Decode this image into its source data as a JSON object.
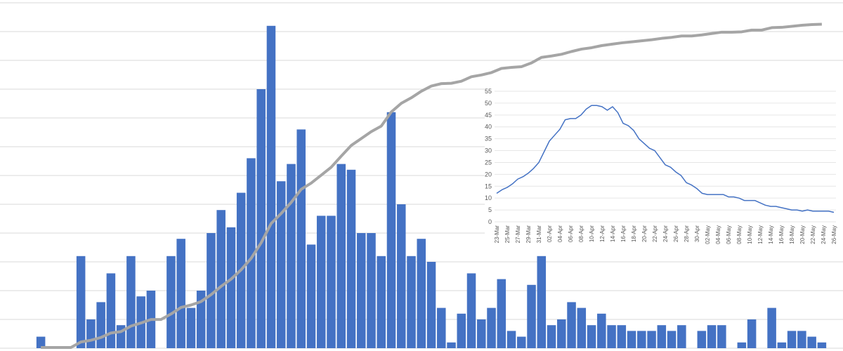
{
  "chart_data": [
    {
      "type": "bar",
      "categories": [
        null,
        null,
        null,
        null,
        null,
        null,
        null,
        null,
        null,
        null,
        null,
        null,
        null,
        null,
        null,
        null,
        null,
        null,
        null,
        null,
        null,
        null,
        null,
        null,
        null,
        null,
        null,
        null,
        null,
        null,
        null,
        null,
        null,
        null,
        null,
        null,
        null,
        null,
        null,
        null,
        null,
        null,
        null,
        null,
        null,
        null,
        null,
        null,
        null,
        null,
        null,
        null,
        null,
        null,
        null,
        null,
        null,
        null,
        null,
        null,
        null,
        null,
        null,
        null,
        null,
        null,
        null,
        null,
        null,
        null,
        null,
        null,
        null,
        null,
        null,
        null,
        null,
        null,
        null
      ],
      "series": [
        {
          "color": "#4472c4",
          "values": [
            2,
            0,
            0,
            0,
            16,
            5,
            8,
            13,
            4,
            16,
            9,
            10,
            0,
            16,
            19,
            7,
            10,
            20,
            24,
            21,
            27,
            33,
            45,
            56,
            29,
            32,
            38,
            18,
            23,
            23,
            32,
            31,
            20,
            20,
            16,
            41,
            25,
            16,
            19,
            15,
            7,
            1,
            6,
            13,
            5,
            7,
            12,
            3,
            2,
            11,
            16,
            4,
            5,
            8,
            7,
            4,
            6,
            4,
            4,
            3,
            3,
            3,
            4,
            3,
            4,
            0,
            3,
            4,
            4,
            0,
            1,
            5,
            0,
            7,
            1,
            3,
            3,
            2,
            1
          ]
        },
        {
          "type": "line",
          "axis": "y2",
          "color": "#a5a5a5",
          "values": [
            2,
            2,
            2,
            2,
            18,
            23,
            31,
            44,
            48,
            64,
            73,
            83,
            83,
            99,
            118,
            125,
            135,
            155,
            179,
            200,
            227,
            260,
            305,
            361,
            390,
            422,
            460,
            478,
            501,
            524,
            556,
            587,
            607,
            627,
            643,
            684,
            709,
            725,
            744,
            759,
            766,
            767,
            773,
            786,
            791,
            798,
            810,
            813,
            815,
            826,
            842,
            846,
            851,
            859,
            866,
            870,
            876,
            880,
            884,
            887,
            890,
            893,
            897,
            900,
            904,
            904,
            907,
            911,
            915,
            915,
            916,
            921,
            921,
            928,
            929,
            932,
            935,
            937,
            938
          ]
        }
      ],
      "ylim": [
        0,
        60
      ],
      "y2lim": [
        0,
        1000
      ],
      "gridlines": [
        5,
        10,
        15,
        20,
        25,
        30,
        35,
        40,
        45,
        50,
        55,
        60
      ],
      "grid": true
    },
    {
      "type": "line",
      "categories": [
        "23-Mar",
        null,
        "25-Mar",
        null,
        "27-Mar",
        null,
        "29-Mar",
        null,
        "31-Mar",
        null,
        "02-Apr",
        null,
        "04-Apr",
        null,
        "06-Apr",
        null,
        "08-Apr",
        null,
        "10-Apr",
        null,
        "12-Apr",
        null,
        "14-Apr",
        null,
        "16-Apr",
        null,
        "18-Apr",
        null,
        "20-Apr",
        null,
        "22-Apr",
        null,
        "24-Apr",
        null,
        "26-Apr",
        null,
        "28-Apr",
        null,
        "30-Apr",
        null,
        "02-May",
        null,
        "04-May",
        null,
        "06-May",
        null,
        "08-May",
        null,
        "10-May",
        null,
        "12-May",
        null,
        "14-May",
        null,
        "16-May",
        null,
        "18-May",
        null,
        "20-May",
        null,
        "22-May",
        null,
        "24-May",
        null,
        "26-May"
      ],
      "series": [
        {
          "color": "#4472c4",
          "values": [
            12,
            13.5,
            14.5,
            16,
            18,
            19,
            20.5,
            22.5,
            25,
            29.5,
            34,
            36.5,
            39,
            43,
            43.5,
            43.5,
            45,
            47.5,
            49,
            49,
            48.5,
            47,
            48.5,
            46,
            41.5,
            40.5,
            38.5,
            35,
            33,
            31,
            30,
            27,
            24,
            23,
            21,
            19.5,
            16.5,
            15.5,
            14,
            12,
            11.5,
            11.5,
            11.5,
            11.5,
            10.5,
            10.5,
            10,
            9,
            9,
            9,
            8,
            7,
            6.5,
            6.5,
            6,
            5.5,
            5,
            5,
            4.5,
            5,
            4.5,
            4.5,
            4.5,
            4.5,
            4
          ]
        }
      ],
      "ylim": [
        0,
        55
      ],
      "yticks": [
        0,
        5,
        10,
        15,
        20,
        25,
        30,
        35,
        40,
        45,
        50,
        55
      ],
      "grid": true
    }
  ]
}
